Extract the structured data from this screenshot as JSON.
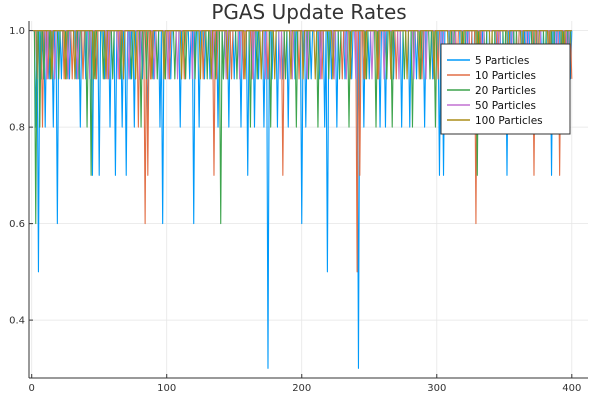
{
  "chart_data": {
    "type": "line",
    "title": "PGAS Update Rates",
    "xlabel": "",
    "ylabel": "",
    "xlim": [
      -2,
      412
    ],
    "ylim": [
      0.28,
      1.02
    ],
    "xticks": [
      0,
      100,
      200,
      300,
      400
    ],
    "yticks": [
      0.4,
      0.6,
      0.8,
      1.0
    ],
    "xtick_labels": [
      "0",
      "100",
      "200",
      "300",
      "400"
    ],
    "ytick_labels": [
      "0.4",
      "0.6",
      "0.8",
      "1.0"
    ],
    "grid": true,
    "legend_position": "top-right",
    "x_range": [
      1,
      400
    ],
    "series": [
      {
        "name": "5 Particles",
        "color": "#009AFA",
        "baseline": 1.0,
        "dips": [
          [
            3,
            0.8
          ],
          [
            5,
            0.5
          ],
          [
            7,
            0.9
          ],
          [
            10,
            0.8
          ],
          [
            13,
            0.9
          ],
          [
            16,
            0.8
          ],
          [
            19,
            0.6
          ],
          [
            22,
            0.9
          ],
          [
            28,
            0.9
          ],
          [
            33,
            0.9
          ],
          [
            36,
            0.8
          ],
          [
            40,
            0.9
          ],
          [
            45,
            0.7
          ],
          [
            50,
            0.7
          ],
          [
            54,
            0.9
          ],
          [
            58,
            0.8
          ],
          [
            62,
            0.7
          ],
          [
            67,
            0.8
          ],
          [
            70,
            0.7
          ],
          [
            73,
            0.9
          ],
          [
            76,
            0.8
          ],
          [
            82,
            0.9
          ],
          [
            86,
            0.8
          ],
          [
            90,
            0.9
          ],
          [
            95,
            0.8
          ],
          [
            97,
            0.6
          ],
          [
            103,
            0.9
          ],
          [
            110,
            0.8
          ],
          [
            117,
            0.9
          ],
          [
            120,
            0.6
          ],
          [
            124,
            0.8
          ],
          [
            128,
            0.9
          ],
          [
            132,
            0.9
          ],
          [
            138,
            0.8
          ],
          [
            142,
            0.9
          ],
          [
            146,
            0.8
          ],
          [
            150,
            0.9
          ],
          [
            155,
            0.8
          ],
          [
            160,
            0.7
          ],
          [
            165,
            0.8
          ],
          [
            168,
            0.9
          ],
          [
            172,
            0.8
          ],
          [
            175,
            0.3
          ],
          [
            178,
            0.9
          ],
          [
            182,
            0.8
          ],
          [
            186,
            0.9
          ],
          [
            190,
            0.8
          ],
          [
            195,
            0.9
          ],
          [
            200,
            0.6
          ],
          [
            203,
            0.8
          ],
          [
            207,
            0.9
          ],
          [
            213,
            0.9
          ],
          [
            217,
            0.8
          ],
          [
            219,
            0.5
          ],
          [
            222,
            0.9
          ],
          [
            226,
            0.8
          ],
          [
            232,
            0.9
          ],
          [
            237,
            0.9
          ],
          [
            242,
            0.3
          ],
          [
            246,
            0.8
          ],
          [
            250,
            0.9
          ],
          [
            258,
            0.8
          ],
          [
            262,
            0.8
          ],
          [
            268,
            0.9
          ],
          [
            274,
            0.8
          ],
          [
            280,
            0.8
          ],
          [
            285,
            0.9
          ],
          [
            291,
            0.8
          ],
          [
            297,
            0.9
          ],
          [
            302,
            0.7
          ],
          [
            305,
            0.7
          ],
          [
            310,
            0.9
          ],
          [
            318,
            0.8
          ],
          [
            322,
            0.9
          ],
          [
            327,
            0.8
          ],
          [
            333,
            0.9
          ],
          [
            338,
            0.8
          ],
          [
            344,
            0.9
          ],
          [
            348,
            0.8
          ],
          [
            352,
            0.7
          ],
          [
            356,
            0.8
          ],
          [
            360,
            0.9
          ],
          [
            364,
            0.8
          ],
          [
            368,
            0.9
          ],
          [
            373,
            0.8
          ],
          [
            378,
            0.9
          ],
          [
            382,
            0.8
          ],
          [
            385,
            0.7
          ],
          [
            388,
            0.9
          ],
          [
            392,
            0.8
          ],
          [
            396,
            0.9
          ],
          [
            399,
            0.9
          ]
        ]
      },
      {
        "name": "10 Particles",
        "color": "#E26F46",
        "baseline": 1.0,
        "dips": [
          [
            4,
            0.9
          ],
          [
            8,
            0.8
          ],
          [
            12,
            0.9
          ],
          [
            24,
            0.9
          ],
          [
            30,
            0.9
          ],
          [
            38,
            0.9
          ],
          [
            48,
            0.9
          ],
          [
            57,
            0.9
          ],
          [
            65,
            0.9
          ],
          [
            79,
            0.8
          ],
          [
            84,
            0.6
          ],
          [
            86,
            0.7
          ],
          [
            88,
            0.9
          ],
          [
            102,
            0.9
          ],
          [
            113,
            0.9
          ],
          [
            127,
            0.9
          ],
          [
            135,
            0.7
          ],
          [
            137,
            0.9
          ],
          [
            148,
            0.9
          ],
          [
            157,
            0.9
          ],
          [
            163,
            0.9
          ],
          [
            175,
            0.9
          ],
          [
            186,
            0.7
          ],
          [
            198,
            0.9
          ],
          [
            215,
            0.9
          ],
          [
            230,
            0.9
          ],
          [
            241,
            0.5
          ],
          [
            243,
            0.7
          ],
          [
            246,
            0.9
          ],
          [
            257,
            0.9
          ],
          [
            270,
            0.9
          ],
          [
            289,
            0.9
          ],
          [
            301,
            0.9
          ],
          [
            315,
            0.9
          ],
          [
            325,
            0.9
          ],
          [
            329,
            0.6
          ],
          [
            332,
            0.9
          ],
          [
            345,
            0.9
          ],
          [
            360,
            0.9
          ],
          [
            372,
            0.7
          ],
          [
            384,
            0.9
          ],
          [
            391,
            0.7
          ],
          [
            395,
            0.9
          ],
          [
            400,
            0.9
          ]
        ]
      },
      {
        "name": "20 Particles",
        "color": "#3DA44D",
        "baseline": 1.0,
        "dips": [
          [
            3,
            0.6
          ],
          [
            6,
            0.8
          ],
          [
            9,
            0.9
          ],
          [
            14,
            0.9
          ],
          [
            20,
            0.9
          ],
          [
            26,
            0.9
          ],
          [
            35,
            0.9
          ],
          [
            41,
            0.8
          ],
          [
            44,
            0.7
          ],
          [
            47,
            0.9
          ],
          [
            53,
            0.9
          ],
          [
            60,
            0.9
          ],
          [
            66,
            0.9
          ],
          [
            74,
            0.9
          ],
          [
            81,
            0.8
          ],
          [
            85,
            0.9
          ],
          [
            93,
            0.9
          ],
          [
            99,
            0.9
          ],
          [
            106,
            0.9
          ],
          [
            114,
            0.9
          ],
          [
            121,
            0.9
          ],
          [
            130,
            0.9
          ],
          [
            136,
            0.9
          ],
          [
            140,
            0.6
          ],
          [
            142,
            0.9
          ],
          [
            152,
            0.9
          ],
          [
            162,
            0.8
          ],
          [
            167,
            0.9
          ],
          [
            177,
            0.8
          ],
          [
            188,
            0.9
          ],
          [
            196,
            0.8
          ],
          [
            205,
            0.9
          ],
          [
            212,
            0.8
          ],
          [
            220,
            0.9
          ],
          [
            228,
            0.9
          ],
          [
            235,
            0.8
          ],
          [
            248,
            0.9
          ],
          [
            255,
            0.8
          ],
          [
            263,
            0.9
          ],
          [
            267,
            0.8
          ],
          [
            276,
            0.9
          ],
          [
            282,
            0.8
          ],
          [
            288,
            0.9
          ],
          [
            295,
            0.9
          ],
          [
            299,
            0.8
          ],
          [
            312,
            0.9
          ],
          [
            320,
            0.8
          ],
          [
            330,
            0.7
          ],
          [
            336,
            0.9
          ],
          [
            342,
            0.8
          ],
          [
            350,
            0.9
          ],
          [
            358,
            0.9
          ],
          [
            365,
            0.8
          ],
          [
            371,
            0.9
          ],
          [
            380,
            0.9
          ],
          [
            386,
            0.8
          ],
          [
            393,
            0.9
          ],
          [
            398,
            0.9
          ]
        ]
      },
      {
        "name": "50 Particles",
        "color": "#C271D2",
        "baseline": 1.0,
        "dips": [
          [
            11,
            0.9
          ],
          [
            17,
            0.9
          ],
          [
            27,
            0.9
          ],
          [
            34,
            0.9
          ],
          [
            43,
            0.9
          ],
          [
            56,
            0.9
          ],
          [
            64,
            0.9
          ],
          [
            72,
            0.9
          ],
          [
            80,
            0.9
          ],
          [
            91,
            0.9
          ],
          [
            101,
            0.9
          ],
          [
            108,
            0.9
          ],
          [
            119,
            0.9
          ],
          [
            134,
            0.9
          ],
          [
            144,
            0.9
          ],
          [
            154,
            0.9
          ],
          [
            164,
            0.9
          ],
          [
            173,
            0.9
          ],
          [
            184,
            0.9
          ],
          [
            193,
            0.9
          ],
          [
            204,
            0.9
          ],
          [
            214,
            0.9
          ],
          [
            224,
            0.9
          ],
          [
            233,
            0.9
          ],
          [
            240,
            0.9
          ],
          [
            252,
            0.9
          ],
          [
            261,
            0.9
          ],
          [
            272,
            0.9
          ],
          [
            283,
            0.9
          ],
          [
            292,
            0.9
          ],
          [
            304,
            0.9
          ],
          [
            313,
            0.9
          ],
          [
            323,
            0.9
          ],
          [
            334,
            0.9
          ],
          [
            346,
            0.9
          ],
          [
            355,
            0.9
          ],
          [
            367,
            0.9
          ],
          [
            376,
            0.9
          ],
          [
            389,
            0.9
          ],
          [
            397,
            0.9
          ]
        ]
      },
      {
        "name": "100 Particles",
        "color": "#AC8D18",
        "baseline": 1.0,
        "dips": [
          [
            15,
            0.9
          ],
          [
            25,
            0.9
          ],
          [
            32,
            0.9
          ],
          [
            46,
            0.9
          ],
          [
            55,
            0.9
          ],
          [
            68,
            0.9
          ],
          [
            77,
            0.9
          ],
          [
            89,
            0.9
          ],
          [
            98,
            0.9
          ],
          [
            111,
            0.9
          ],
          [
            125,
            0.9
          ],
          [
            133,
            0.9
          ],
          [
            145,
            0.9
          ],
          [
            158,
            0.9
          ],
          [
            170,
            0.9
          ],
          [
            180,
            0.9
          ],
          [
            192,
            0.9
          ],
          [
            201,
            0.9
          ],
          [
            210,
            0.9
          ],
          [
            223,
            0.9
          ],
          [
            236,
            0.9
          ],
          [
            247,
            0.9
          ],
          [
            256,
            0.9
          ],
          [
            266,
            0.9
          ],
          [
            278,
            0.9
          ],
          [
            287,
            0.9
          ],
          [
            298,
            0.9
          ],
          [
            309,
            0.9
          ],
          [
            319,
            0.9
          ],
          [
            331,
            0.9
          ],
          [
            340,
            0.9
          ],
          [
            353,
            0.9
          ],
          [
            363,
            0.9
          ],
          [
            375,
            0.9
          ],
          [
            383,
            0.9
          ],
          [
            394,
            0.9
          ]
        ]
      }
    ]
  }
}
